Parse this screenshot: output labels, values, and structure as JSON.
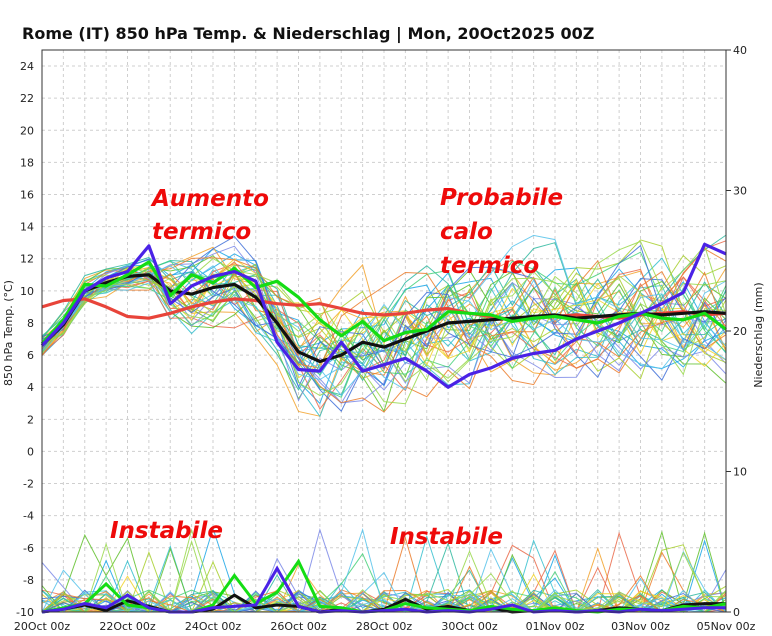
{
  "chart_data": {
    "type": "line",
    "title": "Rome  (IT)  850 hPa Temp. & Niederschlag | Mon, 20Oct2025 00Z",
    "ylabel": "850 hPa Temp. (°C)",
    "y2label": "Niederschlag (mm)",
    "ylim": [
      -10,
      25
    ],
    "y2lim": [
      0,
      40
    ],
    "y_ticks": [
      "24",
      "22",
      "20",
      "18",
      "16",
      "14",
      "12",
      "10",
      "8",
      "6",
      "4",
      "2",
      "0",
      "-2",
      "-4",
      "-6",
      "-8",
      "-10"
    ],
    "y2_ticks": [
      "40",
      "30",
      "20",
      "10",
      "0"
    ],
    "x_ticks": [
      "20Oct 00z",
      "22Oct 00z",
      "24Oct 00z",
      "26Oct 00z",
      "28Oct 00z",
      "30Oct 00z",
      "01Nov 00z",
      "03Nov 00z",
      "05Nov 00z"
    ],
    "grid": true,
    "x_day": [
      0,
      0.5,
      1,
      1.5,
      2,
      2.5,
      3,
      3.5,
      4,
      4.5,
      5,
      5.5,
      6,
      6.5,
      7,
      7.5,
      8,
      8.5,
      9,
      9.5,
      10,
      10.5,
      11,
      11.5,
      12,
      12.5,
      13,
      13.5,
      14,
      14.5,
      15,
      15.5,
      16
    ],
    "series": [
      {
        "name": "",
        "color": "#e8443a",
        "values": [
          9.0,
          9.4,
          9.5,
          9.0,
          8.4,
          8.3,
          8.6,
          9.0,
          9.3,
          9.5,
          9.4,
          9.2,
          9.1,
          9.2,
          8.9,
          8.6,
          8.5,
          8.6,
          8.8,
          8.9,
          8.6,
          8.4,
          8.2,
          8.3,
          8.4,
          8.5,
          8.4,
          8.3,
          8.5,
          8.6,
          8.7,
          8.5,
          8.6
        ]
      },
      {
        "name": "",
        "color": "#111111",
        "values": [
          6.6,
          7.9,
          10.0,
          10.5,
          10.9,
          11.0,
          10.0,
          9.8,
          10.2,
          10.4,
          9.6,
          8.0,
          6.2,
          5.6,
          6.0,
          6.8,
          6.5,
          7.0,
          7.5,
          8.0,
          8.1,
          8.2,
          8.3,
          8.4,
          8.5,
          8.3,
          8.4,
          8.5,
          8.6,
          8.5,
          8.6,
          8.7,
          8.6
        ]
      },
      {
        "name": "",
        "color": "#14dd14",
        "values": [
          6.7,
          8.2,
          10.4,
          10.3,
          11.0,
          11.8,
          9.7,
          11.0,
          10.5,
          11.4,
          10.2,
          10.6,
          9.6,
          8.2,
          7.2,
          8.1,
          6.9,
          7.4,
          7.6,
          8.7,
          8.6,
          8.5,
          8.1,
          8.3,
          8.4,
          8.2,
          8.0,
          8.4,
          8.6,
          8.3,
          8.2,
          8.6,
          7.6
        ]
      },
      {
        "name": "",
        "color": "#4a22e6",
        "values": [
          6.6,
          8.0,
          10.0,
          10.8,
          11.2,
          12.8,
          9.2,
          10.3,
          10.9,
          11.2,
          10.6,
          6.8,
          5.1,
          5.0,
          6.8,
          5.0,
          5.4,
          5.8,
          5.0,
          4.0,
          4.8,
          5.2,
          5.8,
          6.1,
          6.3,
          7.0,
          7.5,
          8.0,
          8.6,
          9.2,
          9.9,
          12.9,
          12.3
        ]
      }
    ],
    "precip_series": [
      {
        "name": "",
        "color": "#111111",
        "values": [
          0,
          0.2,
          0.5,
          0.1,
          0.8,
          0.4,
          0,
          0,
          0.2,
          1.2,
          0.3,
          0.5,
          0.4,
          0,
          0.2,
          0,
          0.2,
          0.9,
          0.2,
          0.4,
          0.1,
          0.3,
          0,
          0.1,
          0.2,
          0,
          0.1,
          0.3,
          0.2,
          0.1,
          0.5,
          0.6,
          0.6
        ]
      },
      {
        "name": "",
        "color": "#14dd14",
        "values": [
          0,
          0.3,
          0.6,
          2.0,
          0.5,
          0.3,
          0,
          0,
          0.5,
          2.6,
          0.6,
          1.4,
          3.6,
          0.4,
          0.3,
          0,
          0.1,
          0.6,
          0.3,
          0.2,
          0.1,
          0.4,
          0.2,
          0.1,
          0.3,
          0.1,
          0,
          0.2,
          0.2,
          0.1,
          0.4,
          0.3,
          0.6
        ]
      },
      {
        "name": "",
        "color": "#4a22e6",
        "values": [
          0,
          0.2,
          0.6,
          0.3,
          1.2,
          0.3,
          0,
          0,
          0.3,
          0.4,
          0.5,
          3.1,
          0.4,
          0,
          0.1,
          0,
          0.1,
          0.2,
          0,
          0.1,
          0,
          0.2,
          0.5,
          0,
          0.1,
          0,
          0.1,
          0,
          0.2,
          0.1,
          0.2,
          0.3,
          0.3
        ]
      }
    ],
    "ensemble_colors": [
      "#1aa6e6",
      "#f2a22c",
      "#35c0cf",
      "#ea6a4a",
      "#5fbf2a",
      "#7c8ae8",
      "#a7cf2c",
      "#2fb8a0",
      "#f2d22a",
      "#47d17a",
      "#3e6fd8",
      "#eb7d2c",
      "#55c2ea",
      "#98d84a"
    ],
    "annotations": [
      "Aumento",
      "termico",
      "Probabile",
      "calo",
      "termico",
      "Instabile",
      "Instabile"
    ]
  }
}
